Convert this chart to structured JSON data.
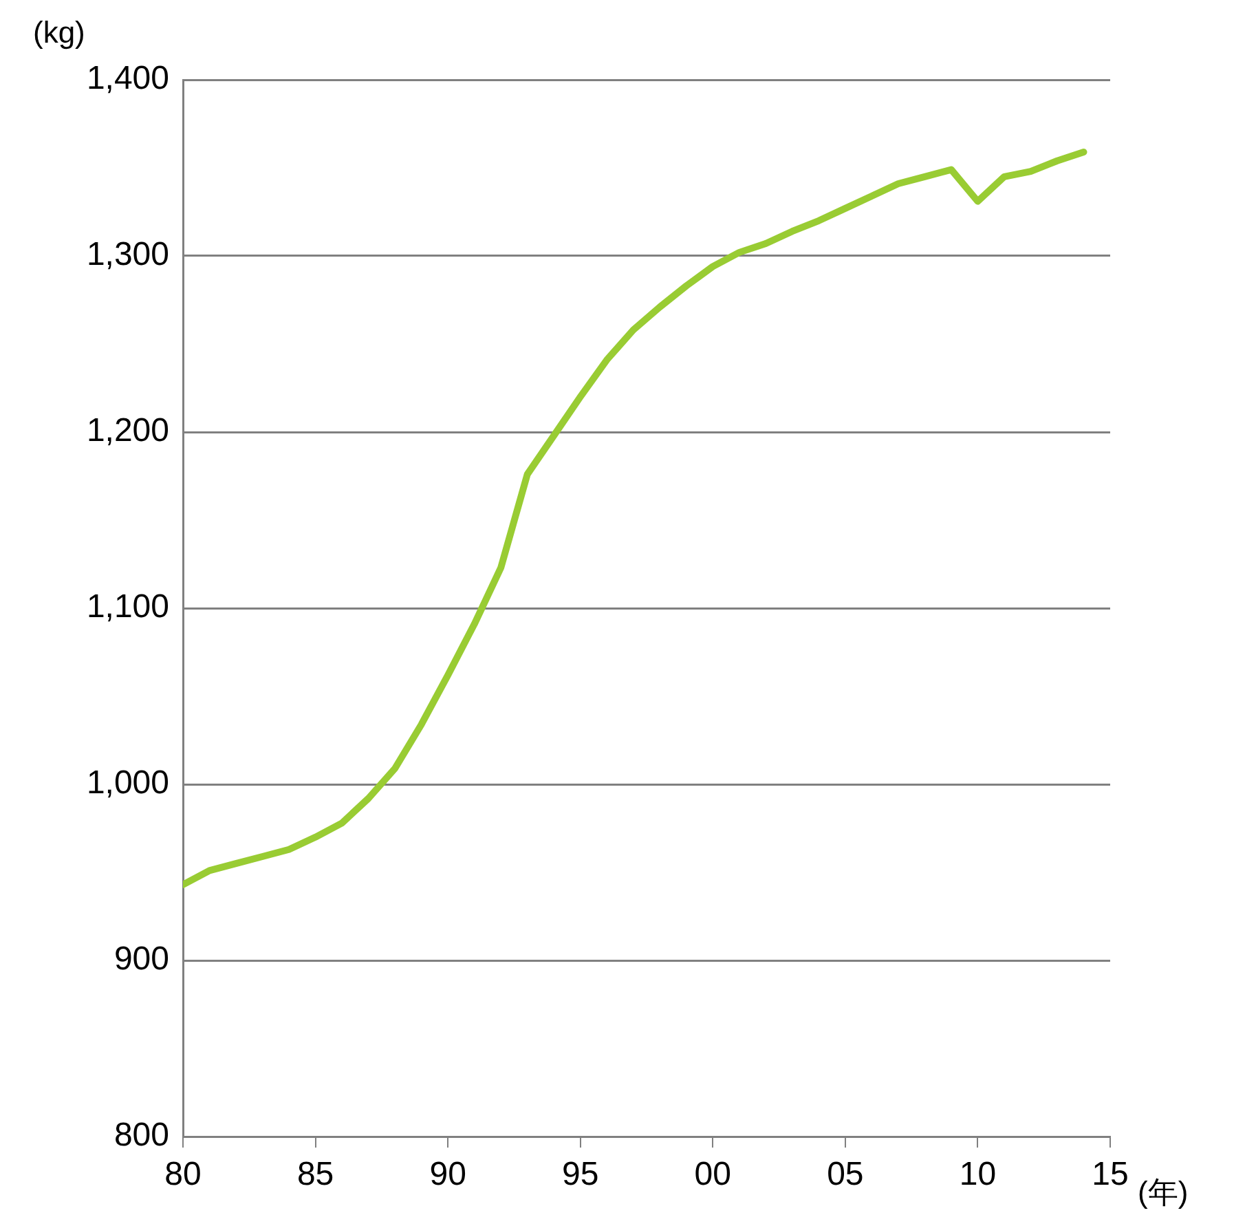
{
  "chart_data": {
    "type": "line",
    "xlabel": "(年)",
    "ylabel": "(kg)",
    "x": [
      1980,
      1981,
      1982,
      1983,
      1984,
      1985,
      1986,
      1987,
      1988,
      1989,
      1990,
      1991,
      1992,
      1993,
      1994,
      1995,
      1996,
      1997,
      1998,
      1999,
      2000,
      2001,
      2002,
      2003,
      2004,
      2005,
      2006,
      2007,
      2008,
      2009,
      2010,
      2011,
      2012,
      2013,
      2014
    ],
    "series": [
      {
        "color": "#99cc33",
        "values": [
          943,
          951,
          955,
          959,
          963,
          970,
          978,
          992,
          1009,
          1034,
          1062,
          1091,
          1123,
          1176,
          1198,
          1220,
          1241,
          1258,
          1271,
          1283,
          1294,
          1302,
          1307,
          1314,
          1320,
          1327,
          1334,
          1341,
          1345,
          1349,
          1331,
          1345,
          1348,
          1354,
          1359
        ]
      }
    ],
    "xlim": [
      1980,
      2015
    ],
    "xticks": [
      {
        "value": 1980,
        "label": "80"
      },
      {
        "value": 1985,
        "label": "85"
      },
      {
        "value": 1990,
        "label": "90"
      },
      {
        "value": 1995,
        "label": "95"
      },
      {
        "value": 2000,
        "label": "00"
      },
      {
        "value": 2005,
        "label": "05"
      },
      {
        "value": 2010,
        "label": "10"
      },
      {
        "value": 2015,
        "label": "15"
      }
    ],
    "ylim": [
      800,
      1400
    ],
    "yticks": [
      {
        "value": 800,
        "label": "800"
      },
      {
        "value": 900,
        "label": "900"
      },
      {
        "value": 1000,
        "label": "1,000"
      },
      {
        "value": 1100,
        "label": "1,100"
      },
      {
        "value": 1200,
        "label": "1,200"
      },
      {
        "value": 1300,
        "label": "1,300"
      },
      {
        "value": 1400,
        "label": "1,400"
      }
    ],
    "grid": "y",
    "legend": false,
    "marker": "none",
    "line_style": "solid"
  }
}
